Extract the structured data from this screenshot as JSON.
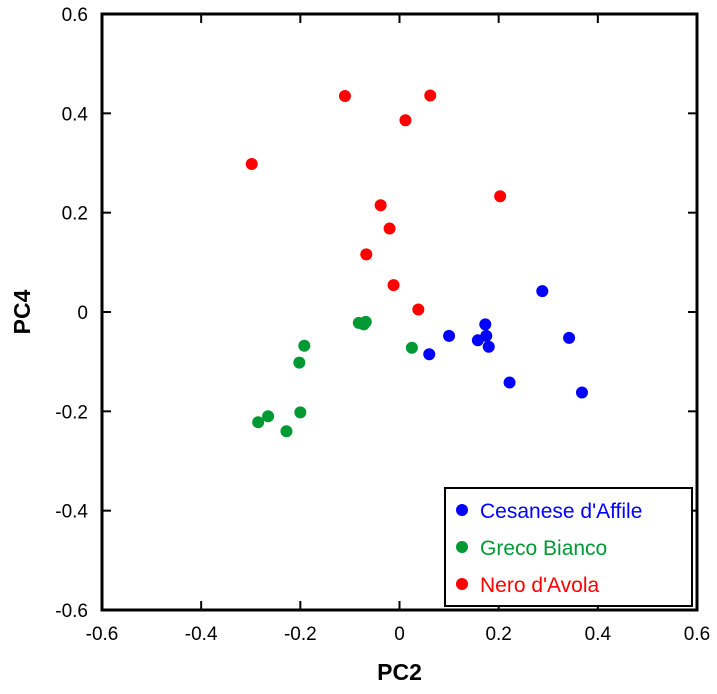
{
  "chart_data": {
    "type": "scatter",
    "title": "",
    "xlabel": "PC2",
    "ylabel": "PC4",
    "xlim": [
      -0.6,
      0.6
    ],
    "ylim": [
      -0.6,
      0.6
    ],
    "xticks": [
      "-0.6",
      "-0.4",
      "-0.2",
      "0",
      "0.2",
      "0.4",
      "0.6"
    ],
    "yticks": [
      "-0.6",
      "-0.4",
      "-0.2",
      "0",
      "0.2",
      "0.4",
      "0.6"
    ],
    "grid": false,
    "legend_position": "bottom-right",
    "series": [
      {
        "name": "Cesanese d'Affile",
        "color": "#0000ff",
        "points": [
          [
            0.06,
            -0.085
          ],
          [
            0.1,
            -0.048
          ],
          [
            0.158,
            -0.057
          ],
          [
            0.173,
            -0.025
          ],
          [
            0.175,
            -0.048
          ],
          [
            0.18,
            -0.07
          ],
          [
            0.222,
            -0.142
          ],
          [
            0.288,
            0.042
          ],
          [
            0.342,
            -0.052
          ],
          [
            0.368,
            -0.162
          ]
        ]
      },
      {
        "name": "Greco Bianco",
        "color": "#009933",
        "points": [
          [
            -0.285,
            -0.222
          ],
          [
            -0.265,
            -0.21
          ],
          [
            -0.228,
            -0.24
          ],
          [
            -0.2,
            -0.202
          ],
          [
            -0.202,
            -0.102
          ],
          [
            -0.192,
            -0.068
          ],
          [
            -0.082,
            -0.022
          ],
          [
            -0.072,
            -0.025
          ],
          [
            -0.068,
            -0.02
          ],
          [
            0.025,
            -0.072
          ]
        ]
      },
      {
        "name": "Nero d'Avola",
        "color": "#ff0000",
        "points": [
          [
            -0.298,
            0.298
          ],
          [
            -0.11,
            0.435
          ],
          [
            0.012,
            0.386
          ],
          [
            0.062,
            0.436
          ],
          [
            -0.038,
            0.215
          ],
          [
            -0.02,
            0.168
          ],
          [
            -0.067,
            0.116
          ],
          [
            -0.012,
            0.054
          ],
          [
            0.038,
            0.005
          ],
          [
            0.203,
            0.233
          ]
        ]
      }
    ]
  }
}
